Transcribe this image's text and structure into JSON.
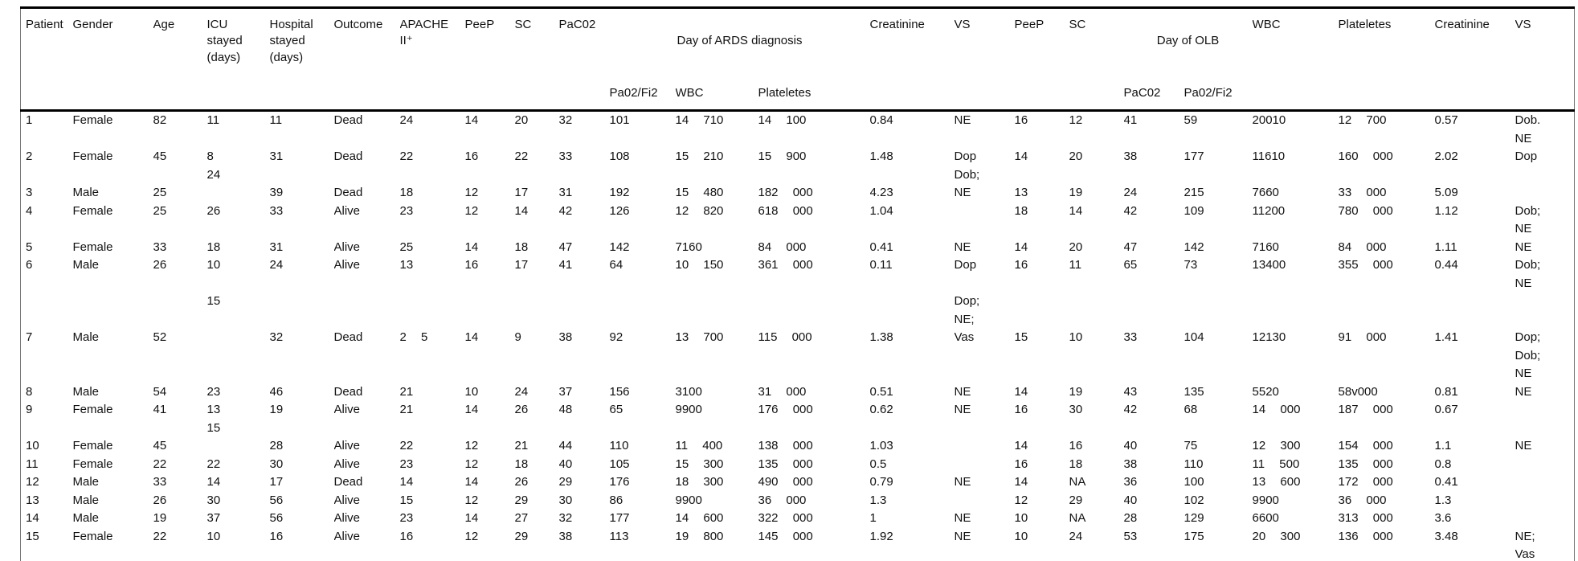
{
  "table": {
    "headers": {
      "patient": "Patient",
      "gender": "Gender",
      "age": "Age",
      "icu_stayed": "ICU\nstayed\n(days)",
      "hospital_stayed": "Hospital\nstayed\n(days)",
      "outcome": "Outcome",
      "apache_ii": "APACHE\nII⁺",
      "peep_1": "PeeP",
      "sc_1": "SC",
      "paco2_1": "PaC02",
      "ards_group": "Day of ARDS diagnosis",
      "ards_pao2fio2": "Pa02/Fi2",
      "ards_wbc": "WBC",
      "ards_platelets": "Plateletes",
      "creatinine_1": "Creatinine",
      "vs_1": "VS",
      "peep_2": "PeeP",
      "sc_2": "SC",
      "olb_group": "Day of OLB",
      "olb_paco2": "PaC02",
      "olb_pao2fio2": "Pa02/Fi2",
      "wbc_2": "WBC",
      "platelets_2": "Plateletes",
      "creatinine_2": "Creatinine",
      "vs_2": "VS"
    },
    "rows": [
      [
        "1",
        "Female",
        "82",
        "11",
        "11",
        "Dead",
        "24",
        "14",
        "20",
        "32",
        "101",
        "14 710",
        "14 100",
        "0.84",
        "NE",
        "16",
        "12",
        "41",
        "59",
        "20010",
        "12 700",
        "0.57",
        "Dob.\nNE"
      ],
      [
        "2",
        "Female",
        "45",
        "8\n24",
        "31",
        "Dead",
        "22",
        "16",
        "22",
        "33",
        "108",
        "15 210",
        "15 900",
        "1.48",
        "Dop\nDob;",
        "14",
        "20",
        "38",
        "177",
        "11610",
        "160 000",
        "2.02",
        "Dop"
      ],
      [
        "3",
        "Male",
        "25",
        "",
        "39",
        "Dead",
        "18",
        "12",
        "17",
        "31",
        "192",
        "15 480",
        "182 000",
        "4.23",
        "NE",
        "13",
        "19",
        "24",
        "215",
        "7660",
        "33 000",
        "5.09",
        ""
      ],
      [
        "4",
        "Female",
        "25",
        "26",
        "33",
        "Alive",
        "23",
        "12",
        "14",
        "42",
        "126",
        "12 820",
        "618 000",
        "1.04",
        "",
        "18",
        "14",
        "42",
        "109",
        "11200",
        "780 000",
        "1.12",
        "Dob;\nNE"
      ],
      [
        "5",
        "Female",
        "33",
        "18",
        "31",
        "Alive",
        "25",
        "14",
        "18",
        "47",
        "142",
        "7160",
        "84 000",
        "0.41",
        "NE",
        "14",
        "20",
        "47",
        "142",
        "7160",
        "84 000",
        "1.11",
        "NE"
      ],
      [
        "6",
        "Male",
        "26",
        "10",
        "24",
        "Alive",
        "13",
        "16",
        "17",
        "41",
        "64",
        "10 150",
        "361 000",
        "0.11",
        "Dop",
        "16",
        "11",
        "65",
        "73",
        "13400",
        "355 000",
        "0.44",
        "Dob;\nNE"
      ],
      [
        "",
        "",
        "",
        "15",
        "",
        "",
        "",
        "",
        "",
        "",
        "",
        "",
        "",
        "",
        "Dop;\nNE;",
        "",
        "",
        "",
        "",
        "",
        "",
        "",
        ""
      ],
      [
        "7",
        "Male",
        "52",
        "",
        "32",
        "Dead",
        "2 5",
        "14",
        "9",
        "38",
        "92",
        "13 700",
        "115 000",
        "1.38",
        "Vas",
        "15",
        "10",
        "33",
        "104",
        "12130",
        "91 000",
        "1.41",
        "Dop;\nDob;\nNE"
      ],
      [
        "8",
        "Male",
        "54",
        "23",
        "46",
        "Dead",
        "21",
        "10",
        "24",
        "37",
        "156",
        "3100",
        "31 000",
        "0.51",
        "NE",
        "14",
        "19",
        "43",
        "135",
        "5520",
        "58v000",
        "0.81",
        "NE"
      ],
      [
        "9",
        "Female",
        "41",
        "13\n15",
        "19",
        "Alive",
        "21",
        "14",
        "26",
        "48",
        "65",
        "9900",
        "176 000",
        "0.62",
        "NE",
        "16",
        "30",
        "42",
        "68",
        "14 000",
        "187 000",
        "0.67",
        ""
      ],
      [
        "10",
        "Female",
        "45",
        "",
        "28",
        "Alive",
        "22",
        "12",
        "21",
        "44",
        "110",
        "11 400",
        "138 000",
        "1.03",
        "",
        "14",
        "16",
        "40",
        "75",
        "12 300",
        "154 000",
        "1.1",
        "NE"
      ],
      [
        "11",
        "Female",
        "22",
        "22",
        "30",
        "Alive",
        "23",
        "12",
        "18",
        "40",
        "105",
        "15 300",
        "135 000",
        "0.5",
        "",
        "16",
        "18",
        "38",
        "110",
        "11 500",
        "135 000",
        "0.8",
        ""
      ],
      [
        "12",
        "Male",
        "33",
        "14",
        "17",
        "Dead",
        "14",
        "14",
        "26",
        "29",
        "176",
        "18 300",
        "490 000",
        "0.79",
        "NE",
        "14",
        "NA",
        "36",
        "100",
        "13 600",
        "172 000",
        "0.41",
        ""
      ],
      [
        "13",
        "Male",
        "26",
        "30",
        "56",
        "Alive",
        "15",
        "12",
        "29",
        "30",
        "86",
        "9900",
        "36 000",
        "1.3",
        "",
        "12",
        "29",
        "40",
        "102",
        "9900",
        "36 000",
        "1.3",
        ""
      ],
      [
        "14",
        "Male",
        "19",
        "37",
        "56",
        "Alive",
        "23",
        "14",
        "27",
        "32",
        "177",
        "14 600",
        "322 000",
        "1",
        "NE",
        "10",
        "NA",
        "28",
        "129",
        "6600",
        "313 000",
        "3.6",
        ""
      ],
      [
        "15",
        "Female",
        "22",
        "10",
        "16",
        "Alive",
        "16",
        "12",
        "29",
        "38",
        "113",
        "19 800",
        "145 000",
        "1.92",
        "NE",
        "10",
        "24",
        "53",
        "175",
        "20 300",
        "136 000",
        "3.48",
        "NE;\nVas"
      ]
    ]
  }
}
